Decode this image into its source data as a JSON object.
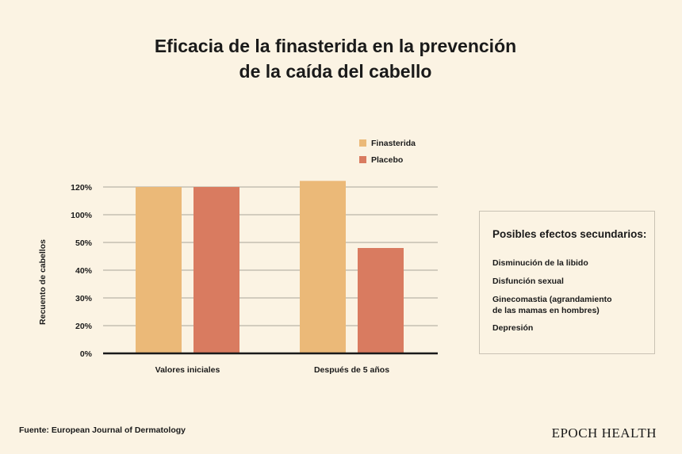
{
  "title": {
    "line1": "Eficacia de la finasterida en la prevención",
    "line2": "de la caída del cabello"
  },
  "chart_data": {
    "type": "bar",
    "categories": [
      "Valores iniciales",
      "Después de 5 años"
    ],
    "series": [
      {
        "name": "Finasterida",
        "color": "#ebb978",
        "values": [
          6,
          6.22
        ]
      },
      {
        "name": "Placebo",
        "color": "#d97b60",
        "values": [
          6,
          3.8
        ]
      }
    ],
    "ylabel": "Recuento de cabellos",
    "xlabel": "",
    "ytick_labels": [
      "0%",
      "20%",
      "30%",
      "40%",
      "50%",
      "100%",
      "120%"
    ],
    "ylim": [
      0,
      6
    ],
    "grid": true,
    "legend": "top-right"
  },
  "sidebar": {
    "heading": "Posibles efectos secundarios:",
    "items": [
      "Disminución de la libido",
      "Disfunción sexual",
      "Ginecomastia (agrandamiento",
      "de las mamas en hombres)",
      "Depresión"
    ]
  },
  "footer": {
    "source": "Fuente: European Journal of Dermatology",
    "brand": "EPOCH HEALTH"
  }
}
